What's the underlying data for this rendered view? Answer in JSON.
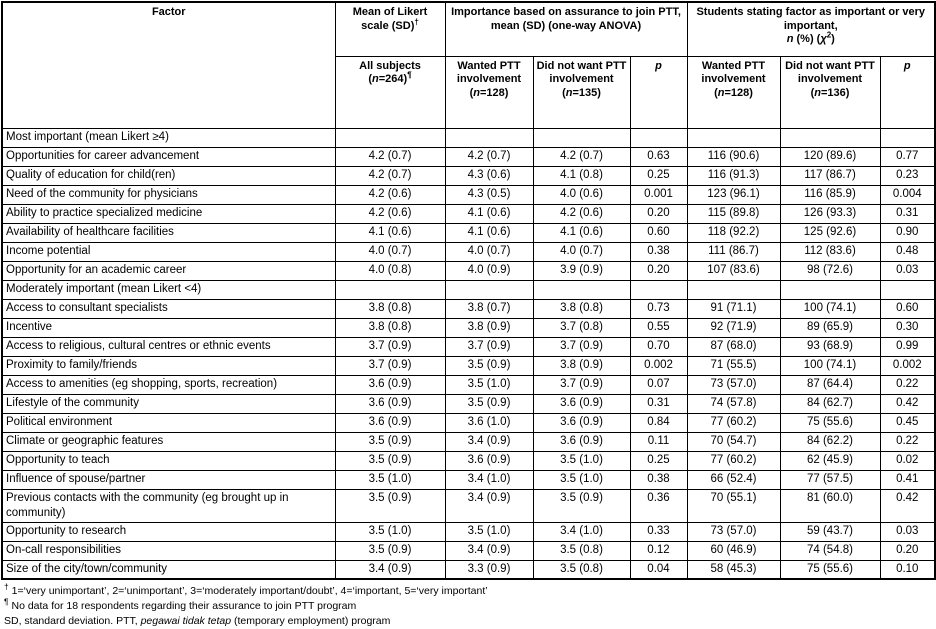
{
  "header": {
    "factor": "Factor",
    "mean_likert": {
      "text": "Mean of Likert scale (SD)",
      "sup": "†"
    },
    "group_anova": {
      "line1": "Importance based on assurance to join PTT,",
      "line2": "mean (SD) (one-way ANOVA)"
    },
    "group_chi": {
      "line1": "Students stating factor as important or very important,",
      "n": "n",
      "mid": " (%) (",
      "chi": "χ",
      "sup": "2",
      "end": ")"
    },
    "subheaders": [
      {
        "label": "All subjects",
        "n": "264",
        "sup": "¶"
      },
      {
        "label": "Wanted PTT involvement",
        "n": "128"
      },
      {
        "label": "Did not want PTT involvement",
        "n": "135"
      },
      {
        "p": "p"
      },
      {
        "label": "Wanted PTT involvement",
        "n": "128"
      },
      {
        "label": "Did not want PTT involvement",
        "n": "136"
      },
      {
        "p": "p"
      }
    ]
  },
  "sections": [
    {
      "label": "Most important (mean Likert ≥4)",
      "rows": [
        {
          "factor": "Opportunities for career advancement",
          "values": [
            "4.2 (0.7)",
            "4.2 (0.7)",
            "4.2 (0.7)",
            "0.63",
            "116 (90.6)",
            "120 (89.6)",
            "0.77"
          ]
        },
        {
          "factor": "Quality of education for child(ren)",
          "values": [
            "4.2 (0.7)",
            "4.3 (0.6)",
            "4.1 (0.8)",
            "0.25",
            "116 (91.3)",
            "117 (86.7)",
            "0.23"
          ]
        },
        {
          "factor": "Need of the community for physicians",
          "values": [
            "4.2 (0.6)",
            "4.3 (0.5)",
            "4.0 (0.6)",
            "0.001",
            "123 (96.1)",
            "116 (85.9)",
            "0.004"
          ]
        },
        {
          "factor": "Ability to practice specialized medicine",
          "values": [
            "4.2 (0.6)",
            "4.1 (0.6)",
            "4.2 (0.6)",
            "0.20",
            "115 (89.8)",
            "126 (93.3)",
            "0.31"
          ]
        },
        {
          "factor": "Availability of healthcare facilities",
          "values": [
            "4.1 (0.6)",
            "4.1 (0.6)",
            "4.1 (0.6)",
            "0.60",
            "118 (92.2)",
            "125 (92.6)",
            "0.90"
          ]
        },
        {
          "factor": "Income potential",
          "values": [
            "4.0 (0.7)",
            "4.0 (0.7)",
            "4.0 (0.7)",
            "0.38",
            "111 (86.7)",
            "112 (83.6)",
            "0.48"
          ]
        },
        {
          "factor": "Opportunity for an academic career",
          "values": [
            "4.0 (0.8)",
            "4.0 (0.9)",
            "3.9 (0.9)",
            "0.20",
            "107 (83.6)",
            "98 (72.6)",
            "0.03"
          ]
        }
      ]
    },
    {
      "label": "Moderately important (mean Likert <4)",
      "rows": [
        {
          "factor": "Access to consultant specialists",
          "values": [
            "3.8 (0.8)",
            "3.8 (0.7)",
            "3.8 (0.8)",
            "0.73",
            "91 (71.1)",
            "100 (74.1)",
            "0.60"
          ]
        },
        {
          "factor": "Incentive",
          "values": [
            "3.8 (0.8)",
            "3.8 (0.9)",
            "3.7 (0.8)",
            "0.55",
            "92 (71.9)",
            "89 (65.9)",
            "0.30"
          ]
        },
        {
          "factor": "Access to religious, cultural centres or ethnic events",
          "values": [
            "3.7 (0.9)",
            "3.7 (0.9)",
            "3.7 (0.9)",
            "0.70",
            "87 (68.0)",
            "93 (68.9)",
            "0.99"
          ]
        },
        {
          "factor": "Proximity to family/friends",
          "values": [
            "3.7 (0.9)",
            "3.5 (0.9)",
            "3.8 (0.9)",
            "0.002",
            "71 (55.5)",
            "100 (74.1)",
            "0.002"
          ]
        },
        {
          "factor": "Access to amenities (eg shopping, sports, recreation)",
          "values": [
            "3.6 (0.9)",
            "3.5 (1.0)",
            "3.7 (0.9)",
            "0.07",
            "73 (57.0)",
            "87 (64.4)",
            "0.22"
          ]
        },
        {
          "factor": "Lifestyle of the community",
          "values": [
            "3.6 (0.9)",
            "3.5 (0.9)",
            "3.6 (0.9)",
            "0.31",
            "74 (57.8)",
            "84 (62.7)",
            "0.42"
          ]
        },
        {
          "factor": "Political environment",
          "values": [
            "3.6 (0.9)",
            "3.6 (1.0)",
            "3.6 (0.9)",
            "0.84",
            "77 (60.2)",
            "75 (55.6)",
            "0.45"
          ]
        },
        {
          "factor": "Climate or geographic features",
          "values": [
            "3.5 (0.9)",
            "3.4 (0.9)",
            "3.6 (0.9)",
            "0.11",
            "70 (54.7)",
            "84 (62.2)",
            "0.22"
          ]
        },
        {
          "factor": "Opportunity to teach",
          "values": [
            "3.5 (0.9)",
            "3.6 (0.9)",
            "3.5 (1.0)",
            "0.25",
            "77 (60.2)",
            "62 (45.9)",
            "0.02"
          ]
        },
        {
          "factor": "Influence of spouse/partner",
          "values": [
            "3.5 (1.0)",
            "3.4 (1.0)",
            "3.5 (1.0)",
            "0.38",
            "66 (52.4)",
            "77 (57.5)",
            "0.41"
          ]
        },
        {
          "factor": "Previous contacts with the community (eg brought up in community)",
          "values": [
            "3.5 (0.9)",
            "3.4 (0.9)",
            "3.5 (0.9)",
            "0.36",
            "70 (55.1)",
            "81 (60.0)",
            "0.42"
          ]
        },
        {
          "factor": "Opportunity to research",
          "values": [
            "3.5 (1.0)",
            "3.5 (1.0)",
            "3.4 (1.0)",
            "0.33",
            "73 (57.0)",
            "59 (43.7)",
            "0.03"
          ]
        },
        {
          "factor": "On-call responsibilities",
          "values": [
            "3.5 (0.9)",
            "3.4 (0.9)",
            "3.5 (0.8)",
            "0.12",
            "60 (46.9)",
            "74 (54.8)",
            "0.20"
          ]
        },
        {
          "factor": "Size of the city/town/community",
          "values": [
            "3.4 (0.9)",
            "3.3 (0.9)",
            "3.5 (0.8)",
            "0.04",
            "58 (45.3)",
            "75 (55.6)",
            "0.10"
          ]
        }
      ]
    }
  ],
  "footnotes": [
    {
      "marker": "†",
      "text": "1=‘very unimportant’, 2=‘unimportant’, 3=‘moderately important/doubt’, 4=‘important, 5=‘very important’"
    },
    {
      "marker": "¶",
      "text": "No data for 18 respondents regarding their assurance to join PTT program"
    },
    {
      "pre": "SD, standard deviation. PTT, ",
      "italic": "pegawai tidak tetap",
      "post": " (temporary employment) program"
    }
  ]
}
